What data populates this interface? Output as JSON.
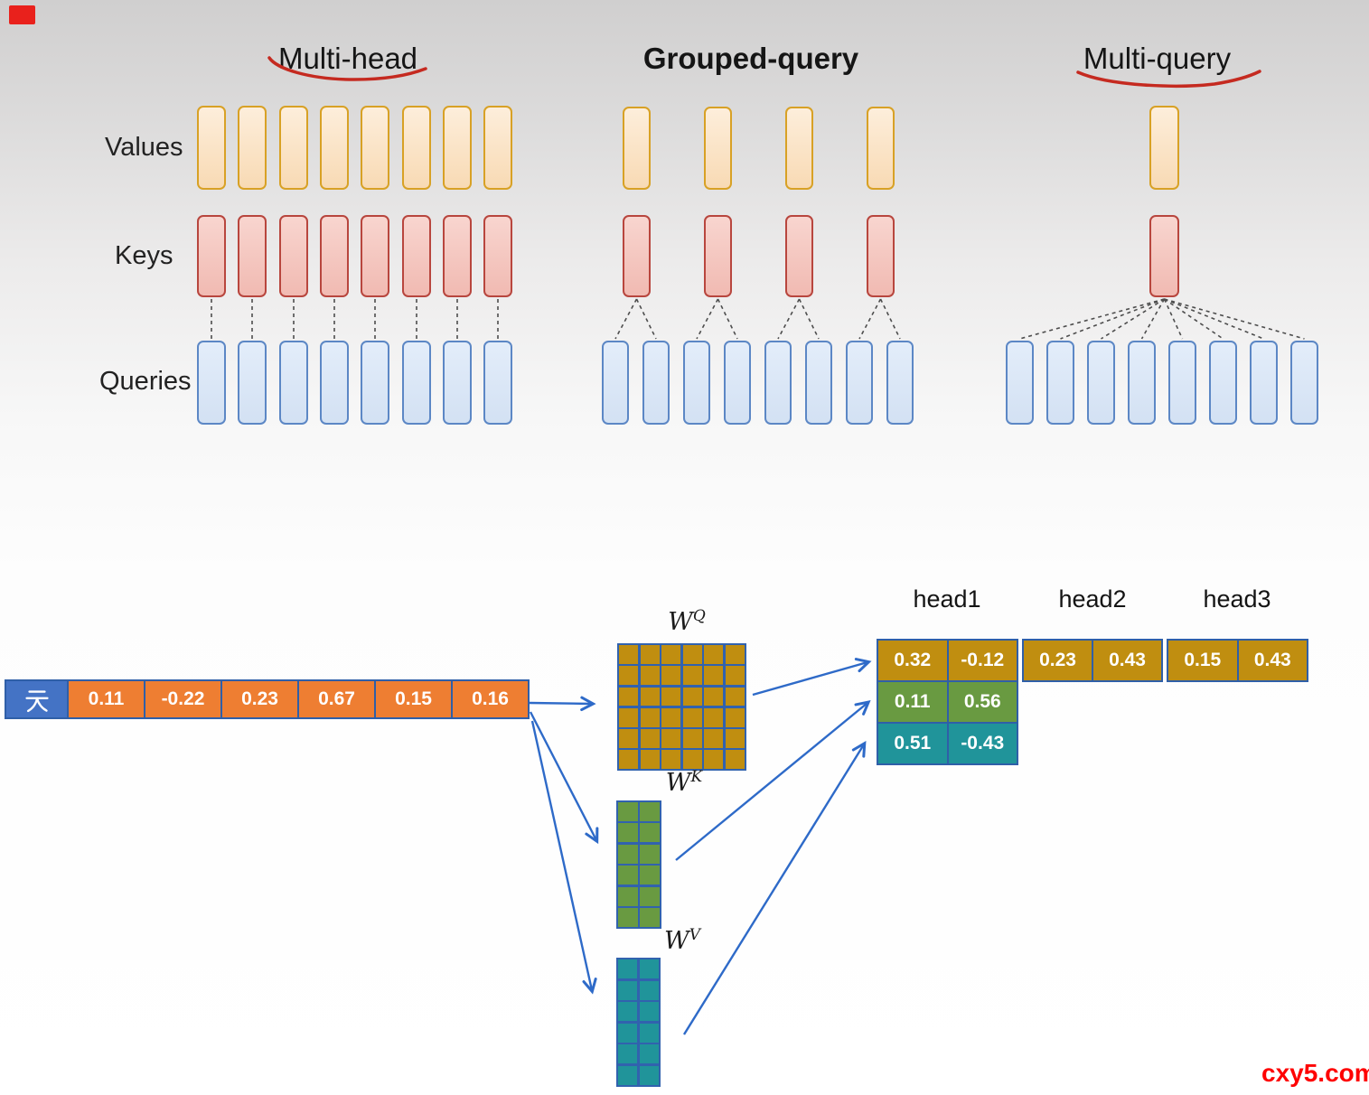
{
  "page": {
    "watermark": "cxy5.com"
  },
  "row_labels": [
    "Values",
    "Keys",
    "Queries"
  ],
  "attention_panels": [
    {
      "title": "Multi-head",
      "style": "underlined",
      "num_values": 8,
      "num_keys": 8,
      "num_queries": 8,
      "links": [
        [
          0,
          0
        ],
        [
          1,
          1
        ],
        [
          2,
          2
        ],
        [
          3,
          3
        ],
        [
          4,
          4
        ],
        [
          5,
          5
        ],
        [
          6,
          6
        ],
        [
          7,
          7
        ]
      ]
    },
    {
      "title": "Grouped-query",
      "style": "bold",
      "num_values": 4,
      "num_keys": 4,
      "num_queries": 8,
      "links": [
        [
          0,
          0
        ],
        [
          0,
          1
        ],
        [
          1,
          2
        ],
        [
          1,
          3
        ],
        [
          2,
          4
        ],
        [
          2,
          5
        ],
        [
          3,
          6
        ],
        [
          3,
          7
        ]
      ]
    },
    {
      "title": "Multi-query",
      "style": "underlined",
      "num_values": 1,
      "num_keys": 1,
      "num_queries": 8,
      "links": [
        [
          0,
          0
        ],
        [
          0,
          1
        ],
        [
          0,
          2
        ],
        [
          0,
          3
        ],
        [
          0,
          4
        ],
        [
          0,
          5
        ],
        [
          0,
          6
        ],
        [
          0,
          7
        ]
      ]
    }
  ],
  "embedding": {
    "token": "天",
    "values": [
      "0.11",
      "-0.22",
      "0.23",
      "0.67",
      "0.15",
      "0.16"
    ]
  },
  "matrices": [
    {
      "base": "W",
      "sup": "Q",
      "rows": 6,
      "cols": 6,
      "color_name": "gold"
    },
    {
      "base": "W",
      "sup": "K",
      "rows": 6,
      "cols": 2,
      "color_name": "green"
    },
    {
      "base": "W",
      "sup": "V",
      "rows": 6,
      "cols": 2,
      "color_name": "teal"
    }
  ],
  "heads": [
    {
      "label": "head1",
      "rows": [
        {
          "color": "gold",
          "cells": [
            "0.32",
            "-0.12"
          ]
        },
        {
          "color": "green",
          "cells": [
            "0.11",
            "0.56"
          ]
        },
        {
          "color": "teal",
          "cells": [
            "0.51",
            "-0.43"
          ]
        }
      ]
    },
    {
      "label": "head2",
      "rows": [
        {
          "color": "gold",
          "cells": [
            "0.23",
            "0.43"
          ]
        }
      ]
    },
    {
      "label": "head3",
      "rows": [
        {
          "color": "gold",
          "cells": [
            "0.15",
            "0.43"
          ]
        }
      ]
    }
  ],
  "colors": {
    "gold": "#c08e10",
    "green": "#699a41",
    "teal": "#20949a",
    "value_border": "#d8a125",
    "key_border": "#b8463e",
    "query_border": "#5c87c5",
    "token_blue": "#4473c5",
    "embed_orange": "#ee7e32",
    "table_border_blue": "#2f5fa8",
    "arrow_blue": "#2e6ac8",
    "annotation_red": "#c52a20",
    "watermark_red": "#fe0202"
  }
}
